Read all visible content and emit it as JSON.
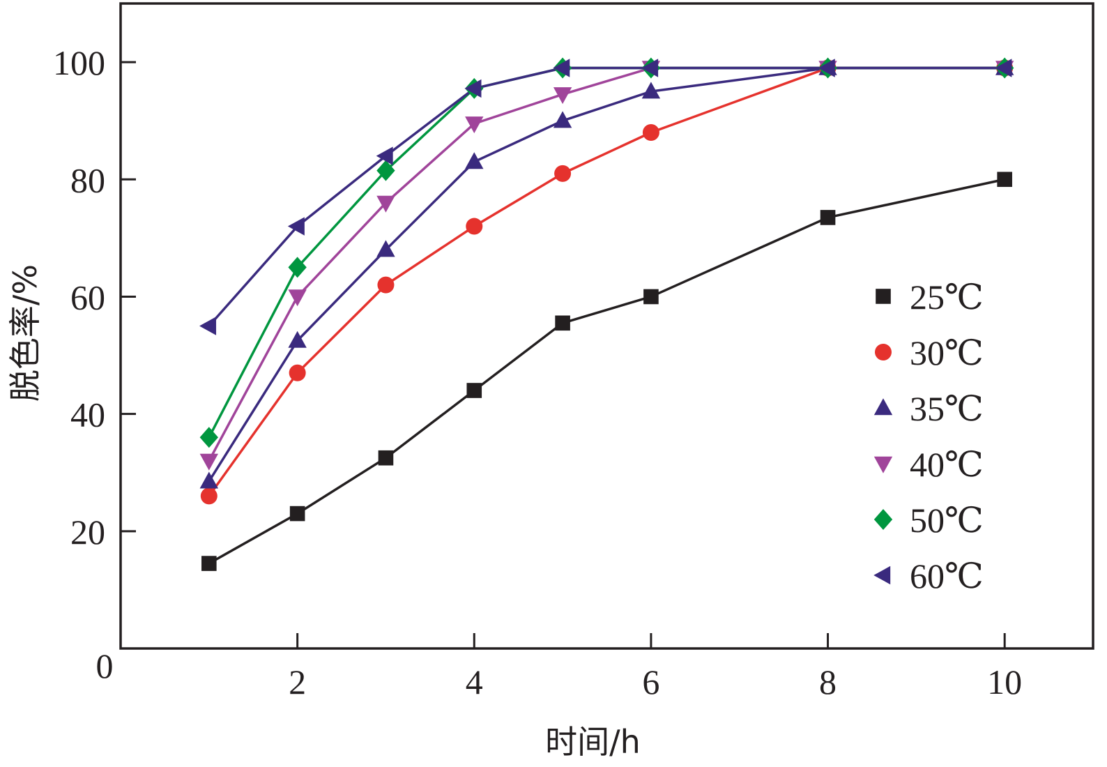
{
  "chart_data": {
    "type": "line",
    "title": "",
    "xlabel": "时间/h",
    "ylabel": "脱色率/%",
    "xlim": [
      0,
      11
    ],
    "ylim": [
      0,
      110
    ],
    "x_ticks": [
      2,
      4,
      6,
      8,
      10
    ],
    "y_ticks": [
      20,
      40,
      60,
      80,
      100
    ],
    "origin_label": "0",
    "legend_position": "right",
    "series": [
      {
        "name": "25℃",
        "marker": "square",
        "color": "#231f20",
        "x": [
          1,
          2,
          3,
          4,
          5,
          6,
          8,
          10
        ],
        "values": [
          14.5,
          23,
          32.5,
          44,
          55.5,
          60,
          73.5,
          80
        ]
      },
      {
        "name": "30℃",
        "marker": "circle",
        "color": "#e5322d",
        "x": [
          1,
          2,
          3,
          4,
          5,
          6,
          8,
          10
        ],
        "values": [
          26,
          47,
          62,
          72,
          81,
          88,
          99,
          99
        ]
      },
      {
        "name": "35℃",
        "marker": "triangle-up",
        "color": "#3a2a7e",
        "x": [
          1,
          2,
          3,
          4,
          5,
          6,
          8,
          10
        ],
        "values": [
          28.5,
          52.5,
          68,
          83,
          90,
          95,
          99,
          99
        ]
      },
      {
        "name": "40℃",
        "marker": "triangle-down",
        "color": "#a0449a",
        "x": [
          1,
          2,
          3,
          4,
          5,
          6,
          8,
          10
        ],
        "values": [
          32,
          60,
          76,
          89.5,
          94.5,
          99,
          99,
          99
        ]
      },
      {
        "name": "50℃",
        "marker": "diamond",
        "color": "#00963f",
        "x": [
          1,
          2,
          3,
          4,
          5,
          6,
          8,
          10
        ],
        "values": [
          36,
          65,
          81.5,
          95.5,
          99,
          99,
          99,
          99
        ]
      },
      {
        "name": "60℃",
        "marker": "triangle-left",
        "color": "#3a2a7e",
        "x": [
          1,
          2,
          3,
          4,
          5,
          6,
          8,
          10
        ],
        "values": [
          55,
          72,
          84,
          95.5,
          99,
          99,
          99,
          99
        ]
      }
    ]
  }
}
